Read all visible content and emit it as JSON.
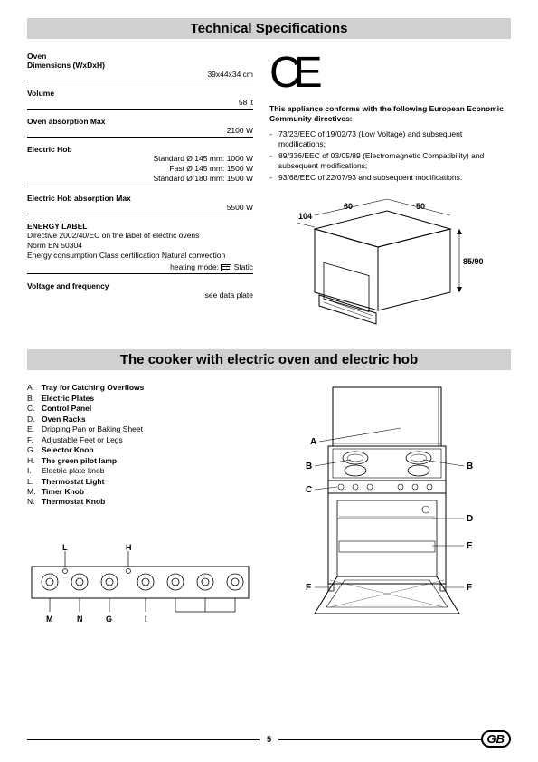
{
  "header_title": "Technical Specifications",
  "specs": {
    "oven_label": "Oven",
    "dimensions_label": "Dimensions (WxDxH)",
    "dimensions_value": "39x44x34 cm",
    "volume_label": "Volume",
    "volume_value": "58 lt",
    "oven_abs_label": "Oven absorption Max",
    "oven_abs_value": "2100 W",
    "hob_label": "Electric Hob",
    "hob_items": [
      "Standard Ø 145 mm: 1000 W",
      "Fast Ø 145 mm: 1500 W",
      "Standard Ø 180 mm: 1500 W"
    ],
    "hob_abs_label": "Electric Hob absorption Max",
    "hob_abs_value": "5500 W",
    "energy_label_title": "ENERGY LABEL",
    "energy_line1": "Directive 2002/40/EC on the label of electric ovens",
    "energy_line2": "Norm EN 50304",
    "energy_line3": "Energy consumption Class certification Natural convection",
    "heating_mode_label": "heating mode:",
    "heating_mode_value": "Static",
    "voltage_label": "Voltage and frequency",
    "voltage_value": "see data plate"
  },
  "ce": {
    "mark": "CE",
    "conform_title": "This appliance conforms with the following European Economic Community directives:",
    "directives": [
      "73/23/EEC of 19/02/73 (Low Voltage) and subsequent modifications;",
      "89/336/EEC of 03/05/89 (Electromagnetic Compatibility) and subsequent modifications;",
      "93/68/EEC of 22/07/93 and subsequent modifications."
    ]
  },
  "dim_labels": {
    "w1": "104",
    "w2": "60",
    "w3": "50",
    "h": "85/90"
  },
  "section2_title": "The cooker with electric oven and electric hob",
  "parts": [
    {
      "letter": "A.",
      "text": "Tray for Catching Overflows",
      "bold": true
    },
    {
      "letter": "B.",
      "text": "Electric Plates",
      "bold": true
    },
    {
      "letter": "C.",
      "text": "Control Panel",
      "bold": true
    },
    {
      "letter": "D.",
      "text": "Oven Racks",
      "bold": true
    },
    {
      "letter": "E.",
      "text": "Dripping Pan or Baking Sheet",
      "bold": false
    },
    {
      "letter": "F.",
      "text": "Adjustable Feet or Legs",
      "bold": false
    },
    {
      "letter": "G.",
      "text": "Selector Knob",
      "bold": true
    },
    {
      "letter": "H.",
      "text": "The green pilot lamp",
      "bold": true
    },
    {
      "letter": "I.",
      "text": "Electric plate knob",
      "bold": false
    },
    {
      "letter": "L.",
      "text": "Thermostat Light",
      "bold": true
    },
    {
      "letter": "M.",
      "text": "Timer Knob",
      "bold": true
    },
    {
      "letter": "N.",
      "text": "Thermostat Knob",
      "bold": true
    }
  ],
  "panel_letters": {
    "L": "L",
    "H": "H",
    "M": "M",
    "N": "N",
    "G": "G",
    "I": "I"
  },
  "cooker_letters": {
    "A": "A",
    "B1": "B",
    "B2": "B",
    "C": "C",
    "D": "D",
    "E": "E",
    "F1": "F",
    "F2": "F"
  },
  "page_number": "5",
  "country_code": "GB",
  "colors": {
    "bar_bg": "#d0d0d0",
    "text": "#000000",
    "page_bg": "#ffffff"
  }
}
